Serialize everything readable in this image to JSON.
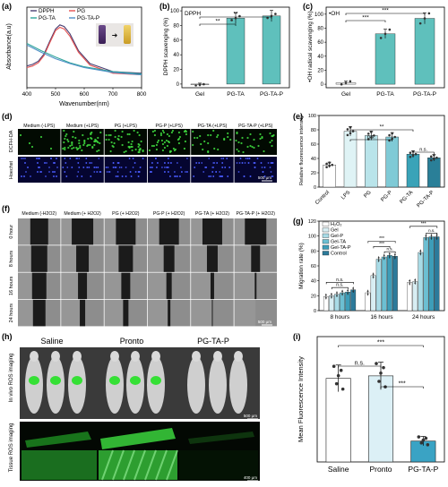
{
  "panels": {
    "a": {
      "letter": "(a)"
    },
    "b": {
      "letter": "(b)"
    },
    "c": {
      "letter": "(c)"
    },
    "d": {
      "letter": "(d)"
    },
    "e": {
      "letter": "(e)"
    },
    "f": {
      "letter": "(f)"
    },
    "g": {
      "letter": "(g)"
    },
    "h": {
      "letter": "(h)"
    },
    "i": {
      "letter": "(i)"
    }
  },
  "chart_data": [
    {
      "id": "a",
      "type": "line",
      "xlabel": "Wavenumber(nm)",
      "ylabel": "Absorbance(a.u)",
      "xlim": [
        400,
        800
      ],
      "xticks": [
        400,
        500,
        600,
        700,
        800
      ],
      "legend": [
        "DPPH",
        "PG",
        "PG-TA",
        "PG-TA-P"
      ],
      "colors": {
        "DPPH": "#4a3f72",
        "PG": "#e5504f",
        "PG-TA": "#2fa59a",
        "PG-TA-P": "#4f8fc7"
      },
      "series": [
        {
          "name": "DPPH",
          "x": [
            400,
            420,
            440,
            460,
            480,
            500,
            515,
            530,
            550,
            580,
            620,
            700,
            800
          ],
          "y": [
            0.27,
            0.29,
            0.33,
            0.42,
            0.58,
            0.73,
            0.78,
            0.76,
            0.67,
            0.46,
            0.3,
            0.2,
            0.18
          ]
        },
        {
          "name": "PG",
          "x": [
            400,
            420,
            440,
            460,
            480,
            500,
            515,
            530,
            550,
            580,
            620,
            700,
            800
          ],
          "y": [
            0.25,
            0.27,
            0.31,
            0.4,
            0.56,
            0.71,
            0.75,
            0.73,
            0.64,
            0.44,
            0.28,
            0.18,
            0.16
          ]
        },
        {
          "name": "PG-TA",
          "x": [
            400,
            450,
            500,
            550,
            600,
            700,
            800
          ],
          "y": [
            0.55,
            0.46,
            0.38,
            0.31,
            0.26,
            0.2,
            0.17
          ]
        },
        {
          "name": "PG-TA-P",
          "x": [
            400,
            450,
            500,
            550,
            600,
            700,
            800
          ],
          "y": [
            0.53,
            0.44,
            0.36,
            0.3,
            0.25,
            0.19,
            0.16
          ]
        }
      ]
    },
    {
      "id": "b",
      "type": "bar",
      "title": "DPPH",
      "ylabel": "DPPH scavenging (%)",
      "categories": [
        "Gel",
        "PG-TA",
        "PG-TA-P"
      ],
      "values": [
        -1,
        90,
        93
      ],
      "ylim": [
        -5,
        105
      ],
      "yticks": [
        0,
        20,
        40,
        60,
        80,
        100
      ],
      "significance": [
        "**",
        "**"
      ]
    },
    {
      "id": "c",
      "type": "bar",
      "title": "•OH",
      "ylabel": "•OH radical scavenging (%)",
      "categories": [
        "Gel",
        "PG-TA",
        "PG-TA-P"
      ],
      "values": [
        2,
        72,
        94
      ],
      "ylim": [
        -5,
        110
      ],
      "yticks": [
        0,
        20,
        40,
        60,
        80,
        100
      ],
      "significance": [
        "***",
        "***"
      ]
    },
    {
      "id": "e",
      "type": "bar",
      "ylabel": "Relative fluorescence intensity",
      "categories": [
        "Control",
        "LPS",
        "PG",
        "PG-P",
        "PG-TA",
        "PG-TA-P"
      ],
      "values": [
        31,
        78,
        72,
        70,
        46,
        41
      ],
      "ylim": [
        0,
        100
      ],
      "yticks": [
        0,
        20,
        40,
        60,
        80,
        100
      ],
      "significance": [
        "**",
        "n.s.",
        "n.s."
      ]
    },
    {
      "id": "g",
      "type": "bar",
      "ylabel": "Migration rate (%)",
      "categories": [
        "8 hours",
        "16 hours",
        "24 hours"
      ],
      "legend": [
        "H2O2",
        "Gel",
        "Gel-P",
        "Gel-TA",
        "Gel-TA-P",
        "Control"
      ],
      "series": [
        {
          "name": "H2O2",
          "values": [
            19,
            24,
            38
          ]
        },
        {
          "name": "Gel",
          "values": [
            20,
            47,
            39
          ]
        },
        {
          "name": "Gel-P",
          "values": [
            22,
            69,
            78
          ]
        },
        {
          "name": "Gel-TA",
          "values": [
            24,
            72,
            98
          ]
        },
        {
          "name": "Gel-TA-P",
          "values": [
            25,
            74,
            99
          ]
        },
        {
          "name": "Control",
          "values": [
            28,
            73,
            99
          ]
        }
      ],
      "ylim": [
        0,
        120
      ],
      "yticks": [
        0,
        20,
        40,
        60,
        80,
        100,
        120
      ],
      "significance": [
        "n.s.",
        "n.s.",
        "***",
        "***",
        "n.s.",
        "***",
        "n.s."
      ]
    },
    {
      "id": "i",
      "type": "bar",
      "ylabel": "Mean Fluorescence Intensity",
      "categories": [
        "Saline",
        "Pronto",
        "PG-TA-P"
      ],
      "values": [
        1.0,
        1.03,
        0.25
      ],
      "ylim": [
        0,
        1.5
      ],
      "significance": [
        "***",
        "n.s.",
        "***"
      ]
    }
  ],
  "images": {
    "a_inset_arrow": "➜",
    "d_columns": [
      "Medium (-LPS)",
      "Medium (+LPS)",
      "PG (+LPS)",
      "PG-P (+LPS)",
      "PG-TA (+LPS)",
      "PG-TA-P (+LPS)"
    ],
    "d_rows": [
      "DCFH-DA",
      "Hoechst"
    ],
    "d_scale": "500 μm",
    "f_columns": [
      "Medium (-H2O2)",
      "Medium (+ H2O2)",
      "PG (+ H2O2)",
      "PG-P (+ H2O2)",
      "PG-TA (+ H2O2)",
      "PG-TA-P (+ H2O2)"
    ],
    "f_rows": [
      "0 hour",
      "8 hours",
      "16 hours",
      "24 hours"
    ],
    "f_scale": "500 μm",
    "h_groups": [
      "Saline",
      "Pronto",
      "PG-TA-P"
    ],
    "h_row1": "In vivo ROS imaging",
    "h_row2": "Tissue ROS imaging",
    "h_scale1": "500 μm",
    "h_scale2": "400 μm"
  }
}
